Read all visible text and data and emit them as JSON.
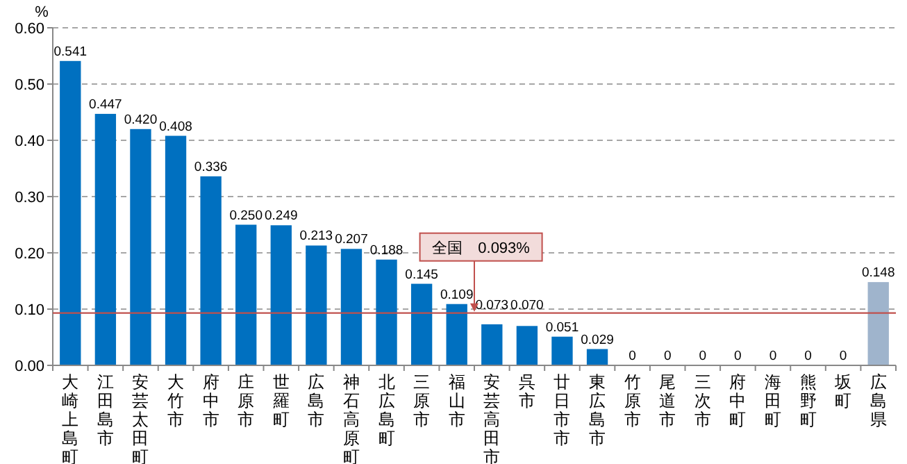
{
  "chart_data": {
    "type": "bar",
    "ylabel": "%",
    "categories": [
      "大崎上島町",
      "江田島市",
      "安芸太田町",
      "大竹市",
      "府中市",
      "庄原市",
      "世羅町",
      "広島市",
      "神石高原町",
      "北広島町",
      "三原市",
      "福山市",
      "安芸高田市",
      "呉市",
      "廿日市市",
      "東広島市",
      "竹原市",
      "尾道市",
      "三次市",
      "府中町",
      "海田町",
      "熊野町",
      "坂町",
      "広島県"
    ],
    "values": [
      0.541,
      0.447,
      0.42,
      0.408,
      0.336,
      0.25,
      0.249,
      0.213,
      0.207,
      0.188,
      0.145,
      0.109,
      0.073,
      0.07,
      0.051,
      0.029,
      0,
      0,
      0,
      0,
      0,
      0,
      0,
      0.148
    ],
    "value_labels": [
      "0.541",
      "0.447",
      "0.420",
      "0.408",
      "0.336",
      "0.250",
      "0.249",
      "0.213",
      "0.207",
      "0.188",
      "0.145",
      "0.109",
      "0.073",
      "0.070",
      "0.051",
      "0.029",
      "0",
      "0",
      "0",
      "0",
      "0",
      "0",
      "0",
      "0.148"
    ],
    "colors": [
      "#0070c0",
      "#0070c0",
      "#0070c0",
      "#0070c0",
      "#0070c0",
      "#0070c0",
      "#0070c0",
      "#0070c0",
      "#0070c0",
      "#0070c0",
      "#0070c0",
      "#0070c0",
      "#0070c0",
      "#0070c0",
      "#0070c0",
      "#0070c0",
      "#0070c0",
      "#0070c0",
      "#0070c0",
      "#0070c0",
      "#0070c0",
      "#0070c0",
      "#0070c0",
      "#9fb4cc"
    ],
    "ylim": [
      0,
      0.6
    ],
    "yticks": [
      {
        "value": 0,
        "label": "0.00"
      },
      {
        "value": 0.1,
        "label": "0.10"
      },
      {
        "value": 0.2,
        "label": "0.20"
      },
      {
        "value": 0.3,
        "label": "0.30"
      },
      {
        "value": 0.4,
        "label": "0.40"
      },
      {
        "value": 0.5,
        "label": "0.50"
      },
      {
        "value": 0.6,
        "label": "0.60"
      }
    ],
    "grid": "y",
    "ref_lines": [
      {
        "axis": "y",
        "value": 0.093,
        "label": "全国　0.093%",
        "color": "#c0504d"
      }
    ]
  }
}
